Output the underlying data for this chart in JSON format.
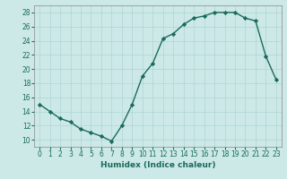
{
  "x": [
    0,
    1,
    2,
    3,
    4,
    5,
    6,
    7,
    8,
    9,
    10,
    11,
    12,
    13,
    14,
    15,
    16,
    17,
    18,
    19,
    20,
    21,
    22,
    23
  ],
  "y": [
    15,
    14,
    13,
    12.5,
    11.5,
    11,
    10.5,
    9.8,
    12,
    15,
    19,
    20.8,
    24.3,
    25,
    26.3,
    27.2,
    27.5,
    28,
    28,
    28,
    27.2,
    26.8,
    21.8,
    18.5
  ],
  "line_color": "#1a6b5a",
  "marker": "D",
  "marker_size": 2.2,
  "bg_color": "#cce9e7",
  "grid_color": "#afd4d2",
  "xlabel": "Humidex (Indice chaleur)",
  "ylim": [
    9,
    29
  ],
  "xlim": [
    -0.5,
    23.5
  ],
  "yticks": [
    10,
    12,
    14,
    16,
    18,
    20,
    22,
    24,
    26,
    28
  ],
  "xticks": [
    0,
    1,
    2,
    3,
    4,
    5,
    6,
    7,
    8,
    9,
    10,
    11,
    12,
    13,
    14,
    15,
    16,
    17,
    18,
    19,
    20,
    21,
    22,
    23
  ],
  "tick_fontsize": 5.5,
  "xlabel_fontsize": 6.5,
  "line_width": 1.0,
  "tick_color": "#1a6b5a",
  "spine_color": "#888888"
}
